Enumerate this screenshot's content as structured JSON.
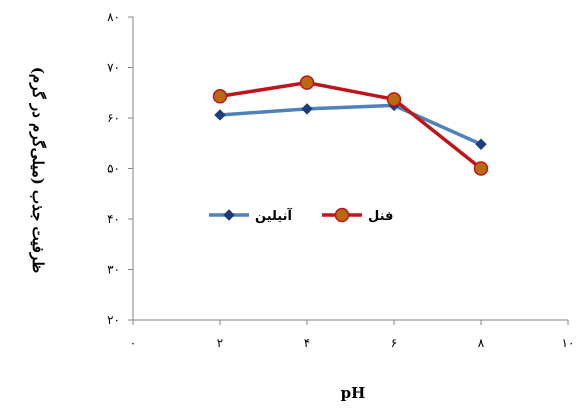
{
  "chart_data": {
    "type": "line",
    "title": "",
    "xlabel": "pH",
    "ylabel": "ظرفیت جذب (میلی‌گرم در گرم)",
    "x": [
      2,
      4,
      6,
      8
    ],
    "xlim": [
      0,
      10
    ],
    "ylim": [
      20,
      80
    ],
    "xticks": [
      0,
      2,
      4,
      6,
      8,
      10
    ],
    "yticks": [
      20,
      30,
      40,
      50,
      60,
      70,
      80
    ],
    "xtick_labels": [
      "۰",
      "۲",
      "۴",
      "۶",
      "۸",
      "۱۰"
    ],
    "ytick_labels": [
      "۲۰",
      "۳۰",
      "۴۰",
      "۵۰",
      "۶۰",
      "۷۰",
      "۸۰"
    ],
    "grid": false,
    "legend_position": "center",
    "series": [
      {
        "name": "آنیلین",
        "values": [
          60.6,
          61.8,
          62.5,
          54.8
        ],
        "color": "#4f81bd",
        "marker": "diamond",
        "marker_color": "#1f3d7a"
      },
      {
        "name": "فنل",
        "values": [
          64.3,
          67.0,
          63.7,
          50.0
        ],
        "color": "#c0141b",
        "marker": "circle",
        "marker_color": "#b86a12"
      }
    ]
  }
}
